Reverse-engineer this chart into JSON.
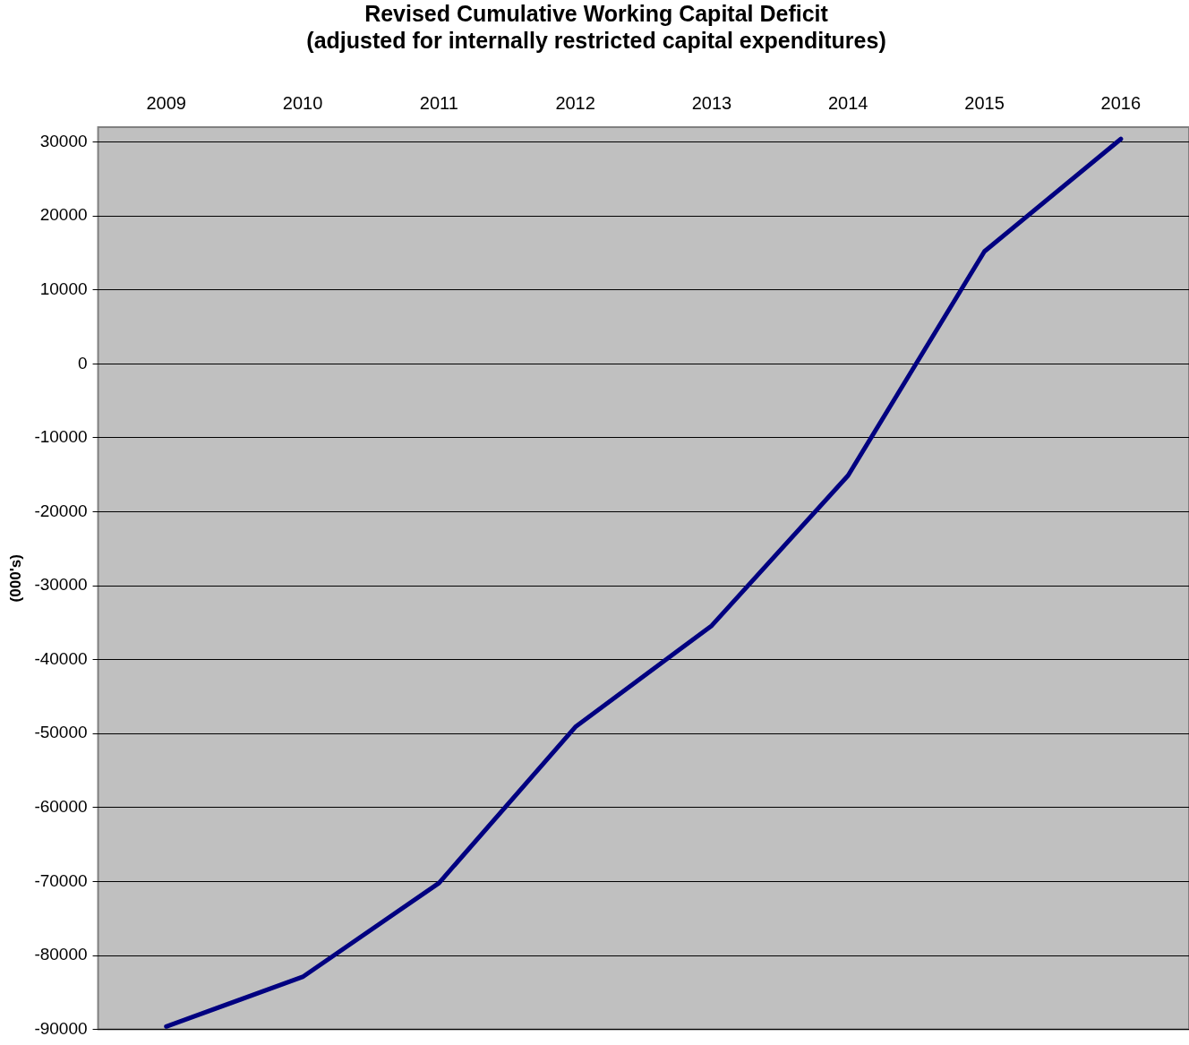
{
  "chart_data": {
    "type": "line",
    "title": "Revised Cumulative Working Capital Deficit\n(adjusted for internally restricted capital expenditures)",
    "ylabel": "(000's)",
    "categories": [
      "2009",
      "2010",
      "2011",
      "2012",
      "2013",
      "2014",
      "2015",
      "2016"
    ],
    "series": [
      {
        "color": "#000080",
        "values": [
          -89600,
          -82900,
          -70200,
          -49100,
          -35400,
          -15100,
          15200,
          30400
        ]
      }
    ],
    "ylim": [
      -90000,
      32000
    ],
    "yticks": [
      -90000,
      -80000,
      -70000,
      -60000,
      -50000,
      -40000,
      -30000,
      -20000,
      -10000,
      0,
      10000,
      20000,
      30000
    ],
    "grid": "y",
    "legend": false,
    "marker": "none",
    "line_style": "solid"
  }
}
